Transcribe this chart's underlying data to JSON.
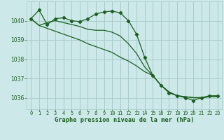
{
  "bg_color": "#cce8e8",
  "grid_color": "#a8cccc",
  "line_color": "#1a6020",
  "marker_color": "#1a6020",
  "xlabel": "Graphe pression niveau de la mer (hPa)",
  "xlabel_color": "#1a6020",
  "tick_color": "#1a6020",
  "xlim": [
    -0.5,
    23.5
  ],
  "ylim": [
    1035.4,
    1041.0
  ],
  "yticks": [
    1036,
    1037,
    1038,
    1039,
    1040
  ],
  "xticks": [
    0,
    1,
    2,
    3,
    4,
    5,
    6,
    7,
    8,
    9,
    10,
    11,
    12,
    13,
    14,
    15,
    16,
    17,
    18,
    19,
    20,
    21,
    22,
    23
  ],
  "series": [
    {
      "x": [
        0,
        1,
        2,
        3,
        4,
        5,
        6,
        7,
        8,
        9,
        10,
        11,
        12,
        13,
        14,
        15,
        16,
        17,
        18,
        19,
        20,
        21,
        22,
        23
      ],
      "y": [
        1040.1,
        1040.55,
        1039.8,
        1040.1,
        1040.15,
        1040.0,
        1039.95,
        1040.1,
        1040.35,
        1040.45,
        1040.5,
        1040.4,
        1040.0,
        1039.3,
        1038.1,
        1037.15,
        1036.65,
        1036.25,
        1036.1,
        1036.0,
        1035.85,
        1036.0,
        1036.1,
        1036.1
      ],
      "with_markers": true
    },
    {
      "x": [
        0,
        1,
        2,
        3,
        4,
        5,
        6,
        7,
        8,
        9,
        10,
        11,
        12,
        13,
        14,
        15,
        16,
        17,
        18,
        19,
        20,
        21,
        22,
        23
      ],
      "y": [
        1040.1,
        1039.75,
        1039.9,
        1040.0,
        1039.9,
        1039.8,
        1039.7,
        1039.55,
        1039.5,
        1039.5,
        1039.4,
        1039.2,
        1038.8,
        1038.3,
        1037.6,
        1037.15,
        1036.65,
        1036.3,
        1036.1,
        1036.05,
        1036.0,
        1036.0,
        1036.05,
        1036.05
      ],
      "with_markers": false
    },
    {
      "x": [
        0,
        1,
        2,
        3,
        4,
        5,
        6,
        7,
        8,
        9,
        10,
        11,
        12,
        13,
        14,
        15,
        16,
        17,
        18,
        19,
        20,
        21,
        22,
        23
      ],
      "y": [
        1040.1,
        1039.75,
        1039.6,
        1039.45,
        1039.3,
        1039.15,
        1039.0,
        1038.8,
        1038.65,
        1038.5,
        1038.35,
        1038.1,
        1037.9,
        1037.65,
        1037.35,
        1037.15,
        1036.65,
        1036.3,
        1036.1,
        1036.05,
        1036.0,
        1036.0,
        1036.05,
        1036.05
      ],
      "with_markers": false
    }
  ]
}
